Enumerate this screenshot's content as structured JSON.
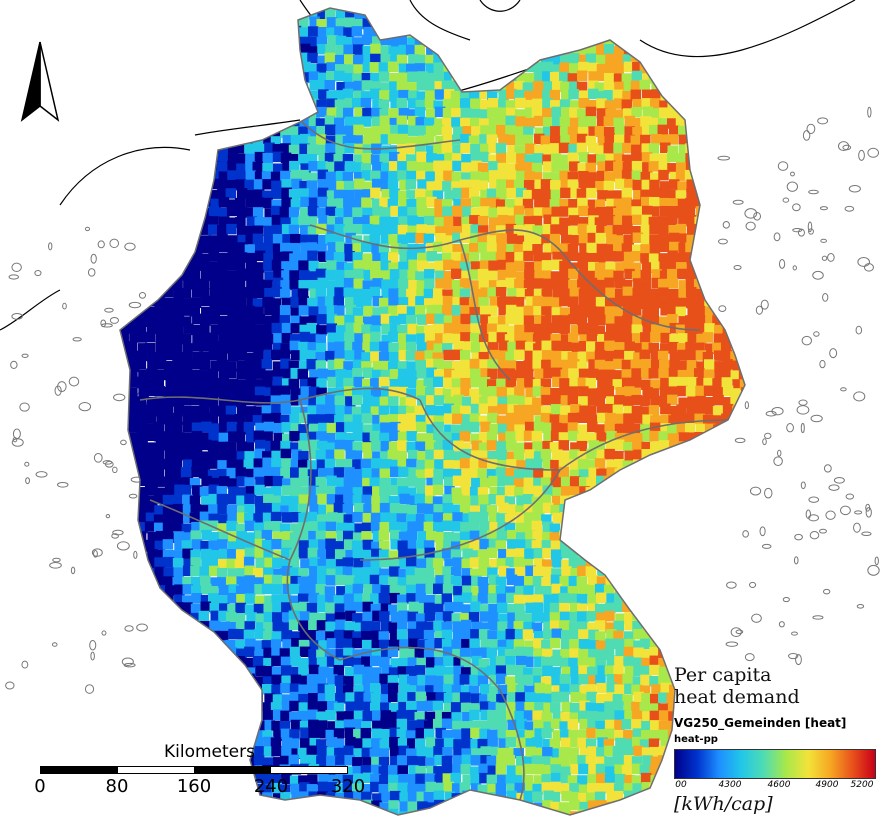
{
  "map": {
    "subject": "Germany municipalities (Gemeinden) colored by per capita heat demand",
    "background_color": "#ffffff",
    "outline_color": "#6e6e6e"
  },
  "north_arrow": {
    "icon": "north-arrow-icon"
  },
  "scale_bar": {
    "title": "Kilometers",
    "ticks": [
      "0",
      "80",
      "160",
      "240",
      "320"
    ]
  },
  "legend": {
    "heading_line1": "Per capita",
    "heading_line2": "heat demand",
    "layer_name": "VG250_Gemeinden [heat]",
    "field_name": "heat-pp",
    "ticks": [
      "00",
      "4300",
      "4600",
      "4900",
      "5200"
    ],
    "unit": "[kWh/cap]",
    "colors": [
      "#00008b",
      "#0033cc",
      "#1e90ff",
      "#22c7e8",
      "#4fdcb2",
      "#a9e84a",
      "#f2e33a",
      "#f6a623",
      "#e8501a",
      "#c8001a"
    ]
  }
}
